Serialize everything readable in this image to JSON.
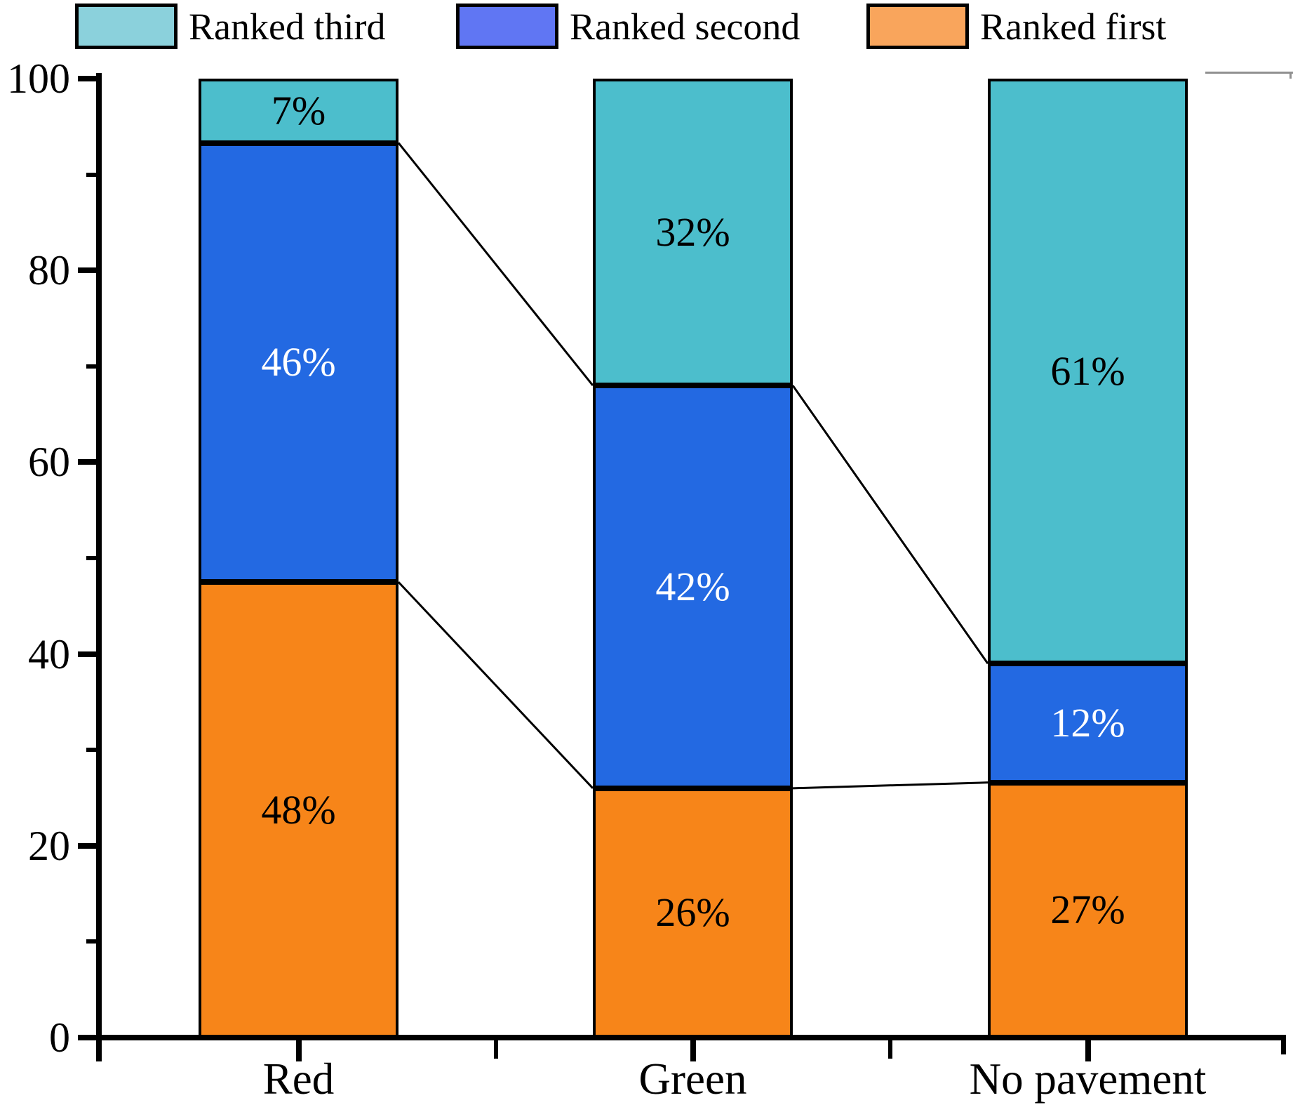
{
  "chart_data": {
    "type": "bar",
    "stacked": true,
    "percent_stacked": true,
    "title": "",
    "xlabel": "",
    "ylabel": "",
    "categories": [
      "Red",
      "Green",
      "No pavement"
    ],
    "series": [
      {
        "name": "Ranked first",
        "values": [
          48,
          26,
          27
        ],
        "labels": [
          "48%",
          "26%",
          "27%"
        ],
        "draw_values": [
          47.5,
          26.0,
          26.6
        ],
        "color": "#F78519",
        "label_color": "#000000"
      },
      {
        "name": "Ranked second",
        "values": [
          46,
          42,
          12
        ],
        "labels": [
          "46%",
          "42%",
          "12%"
        ],
        "draw_values": [
          45.8,
          42.0,
          12.4
        ],
        "color": "#2369E2",
        "label_color": "#FFFFFF"
      },
      {
        "name": "Ranked third",
        "values": [
          7,
          32,
          61
        ],
        "labels": [
          "7%",
          "32%",
          "61%"
        ],
        "draw_values": [
          6.7,
          32.0,
          61.0
        ],
        "color": "#4CBECC",
        "label_color": "#000000"
      }
    ],
    "ylim": [
      0,
      100
    ],
    "y_major_ticks": [
      0,
      20,
      40,
      60,
      80,
      100
    ],
    "y_minor_ticks": [
      10,
      30,
      50,
      70,
      90
    ],
    "y_tick_labels": [
      "0",
      "20",
      "40",
      "60",
      "80",
      "100"
    ],
    "x_minor_tick_positions_between_bars": true,
    "grid": false,
    "connectors_between_segment_boundaries": true,
    "axis_color": "#000000",
    "legend": {
      "position": "top",
      "items": [
        {
          "label": "Ranked third",
          "swatch_color": "#8BD1DC"
        },
        {
          "label": "Ranked second",
          "swatch_color": "#6076F3"
        },
        {
          "label": "Ranked first",
          "swatch_color": "#F9A55C"
        }
      ]
    }
  }
}
